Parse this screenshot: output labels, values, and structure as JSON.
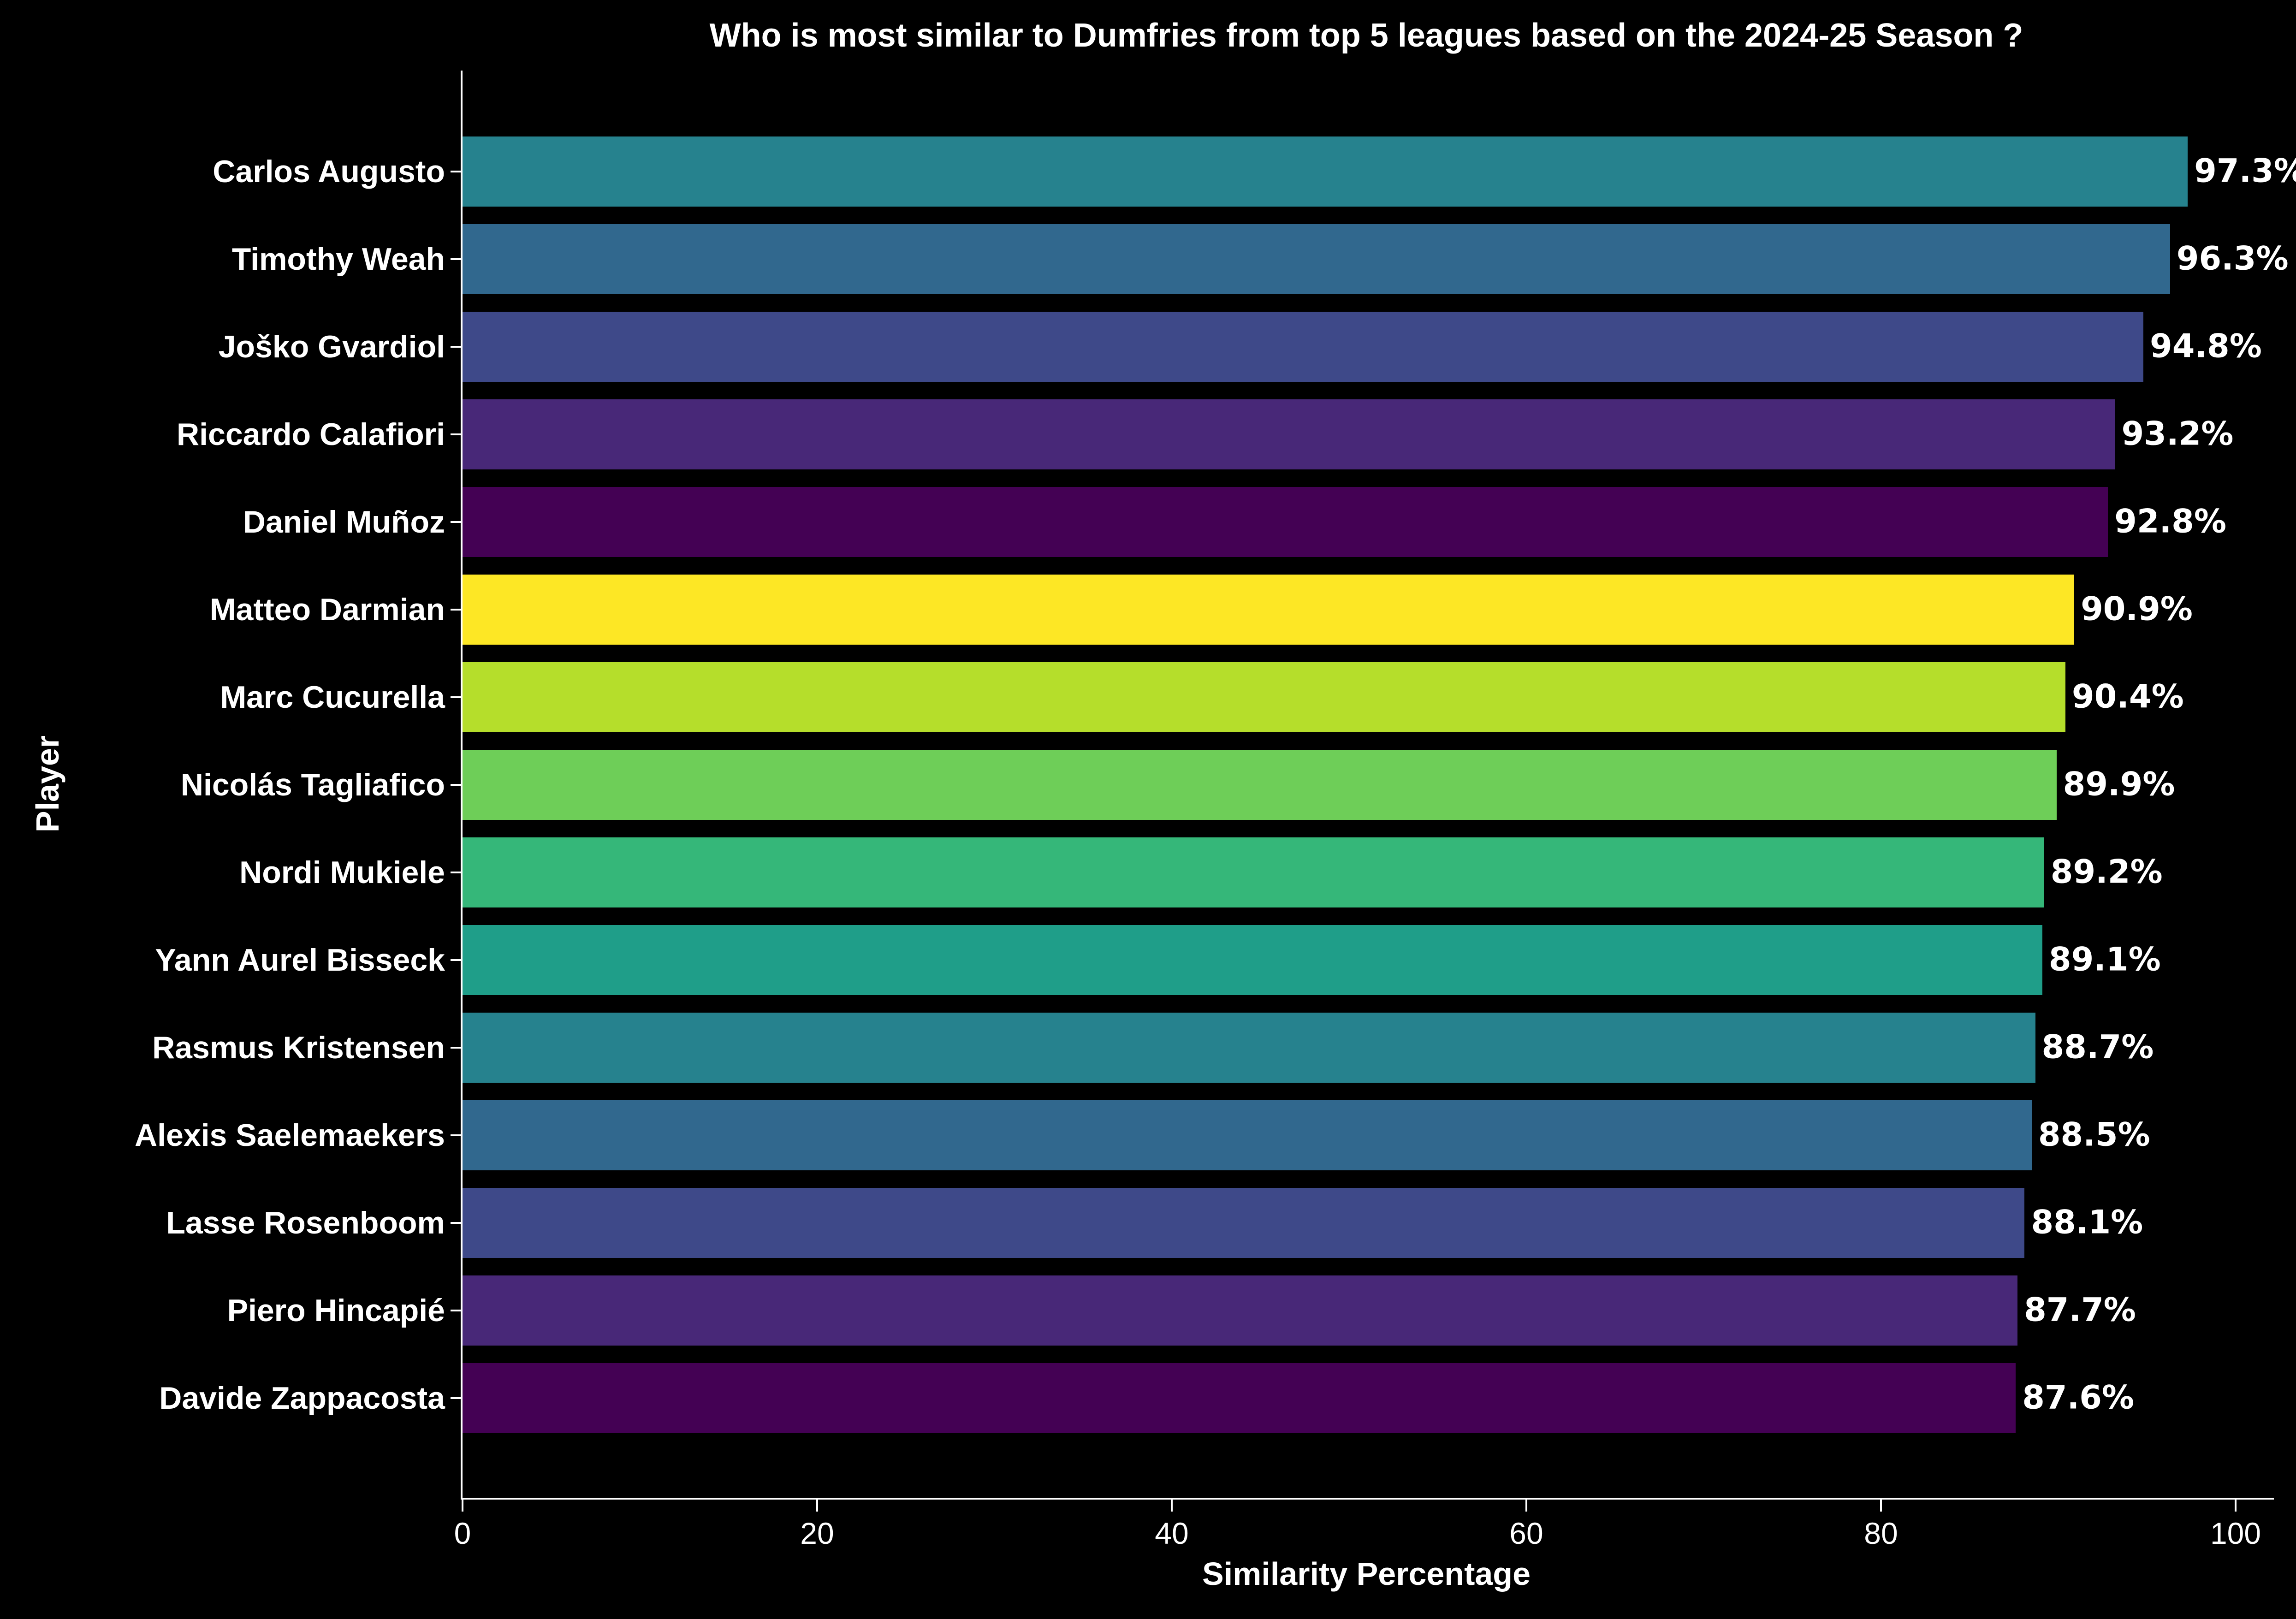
{
  "chart_data": {
    "type": "bar",
    "orientation": "horizontal",
    "title": "Who is most similar to Dumfries from top 5 leagues based on the 2024-25 Season ?",
    "xlabel": "Similarity Percentage",
    "ylabel": "Player",
    "background_color": "#000000",
    "text_color": "#ffffff",
    "axis_color": "#ffffff",
    "grid": false,
    "legend_position": "none",
    "xlim": [
      0,
      102.2
    ],
    "xticks": [
      0,
      20,
      40,
      60,
      80,
      100
    ],
    "categories": [
      "Carlos Augusto",
      "Timothy Weah",
      "Joško Gvardiol",
      "Riccardo Calafiori",
      "Daniel Muñoz",
      "Matteo Darmian",
      "Marc Cucurella",
      "Nicolás Tagliafico",
      "Nordi Mukiele",
      "Yann Aurel Bisseck",
      "Rasmus Kristensen",
      "Alexis Saelemaekers",
      "Lasse Rosenboom",
      "Piero Hincapié",
      "Davide Zappacosta"
    ],
    "values": [
      97.3,
      96.3,
      94.8,
      93.2,
      92.8,
      90.9,
      90.4,
      89.9,
      89.2,
      89.1,
      88.7,
      88.5,
      88.1,
      87.7,
      87.6
    ],
    "value_labels": [
      "97.3%",
      "96.3%",
      "94.8%",
      "93.2%",
      "92.8%",
      "90.9%",
      "90.4%",
      "89.9%",
      "89.2%",
      "89.1%",
      "88.7%",
      "88.5%",
      "88.1%",
      "87.7%",
      "87.6%"
    ],
    "bar_colors": [
      "#26828e",
      "#31688e",
      "#3e4989",
      "#482878",
      "#440154",
      "#fde725",
      "#b5de2b",
      "#6ece58",
      "#35b779",
      "#1f9e89",
      "#26828e",
      "#31688e",
      "#3e4989",
      "#482878",
      "#440154"
    ]
  }
}
